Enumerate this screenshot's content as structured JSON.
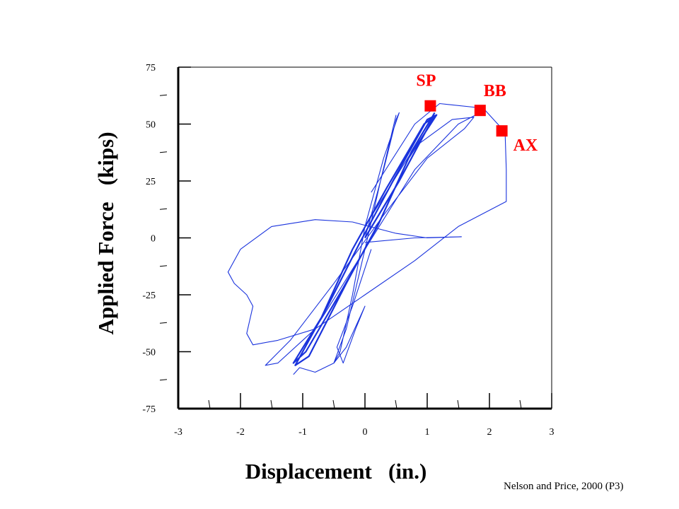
{
  "chart_data": {
    "type": "line",
    "xlabel": "Displacement   (in.)",
    "ylabel": "Applied Force   (kips)",
    "xlim": [
      -3,
      3
    ],
    "ylim": [
      -75,
      75
    ],
    "x_ticks": [
      "-3",
      "-2",
      "-1",
      "0",
      "1",
      "2",
      "3"
    ],
    "y_ticks": [
      "75",
      "50",
      "25",
      "0",
      "-25",
      "-50",
      "-75"
    ],
    "grid": false,
    "line_color": "#1a33dd",
    "marker_color": "#ff0000",
    "series": [
      {
        "values": [
          [
            0.0,
            0.0
          ],
          [
            0.55,
            25.0
          ],
          [
            1.1,
            53.0
          ],
          [
            0.95,
            50.0
          ],
          [
            0.35,
            22.0
          ],
          [
            -0.2,
            -5.0
          ],
          [
            -0.7,
            -35.0
          ],
          [
            -1.15,
            -55.0
          ],
          [
            -0.95,
            -50.0
          ],
          [
            -0.35,
            -22.0
          ],
          [
            0.2,
            5.0
          ],
          [
            0.7,
            35.0
          ],
          [
            1.15,
            54.0
          ],
          [
            1.0,
            52.0
          ],
          [
            0.45,
            25.0
          ],
          [
            -0.1,
            -3.0
          ],
          [
            -0.6,
            -30.0
          ],
          [
            -1.12,
            -56.0
          ],
          [
            -0.9,
            -52.0
          ],
          [
            -0.3,
            -20.0
          ],
          [
            0.25,
            8.0
          ],
          [
            0.75,
            38.0
          ],
          [
            1.12,
            55.0
          ]
        ]
      },
      {
        "values": [
          [
            0.0,
            0.0
          ],
          [
            0.3,
            30.0
          ],
          [
            0.5,
            52.0
          ],
          [
            0.55,
            55.0
          ],
          [
            0.3,
            35.0
          ],
          [
            0.0,
            5.0
          ],
          [
            -0.2,
            -25.0
          ],
          [
            -0.4,
            -50.0
          ],
          [
            -0.5,
            -55.0
          ],
          [
            -0.3,
            -40.0
          ],
          [
            0.0,
            -5.0
          ],
          [
            0.25,
            25.0
          ],
          [
            0.5,
            54.0
          ]
        ]
      },
      {
        "values": [
          [
            0.0,
            5.0
          ],
          [
            0.8,
            40.0
          ],
          [
            1.4,
            52.0
          ],
          [
            1.75,
            53.0
          ],
          [
            1.6,
            48.0
          ],
          [
            1.0,
            35.0
          ],
          [
            0.3,
            10.0
          ],
          [
            -0.5,
            -20.0
          ],
          [
            -1.2,
            -45.0
          ],
          [
            -1.6,
            -56.0
          ],
          [
            -1.4,
            -55.0
          ],
          [
            -0.8,
            -40.0
          ],
          [
            0.0,
            -5.0
          ],
          [
            0.8,
            30.0
          ],
          [
            1.5,
            50.0
          ],
          [
            1.85,
            55.0
          ]
        ]
      },
      {
        "values": [
          [
            0.1,
            20.0
          ],
          [
            0.8,
            50.0
          ],
          [
            1.2,
            59.0
          ],
          [
            1.9,
            57.0
          ],
          [
            2.2,
            48.0
          ],
          [
            2.25,
            47.5
          ],
          [
            2.27,
            30.0
          ],
          [
            2.27,
            16.0
          ],
          [
            1.5,
            5.0
          ],
          [
            0.8,
            -10.0
          ],
          [
            0.0,
            -25.0
          ],
          [
            -0.8,
            -40.0
          ],
          [
            -1.4,
            -45.0
          ],
          [
            -1.8,
            -47.0
          ],
          [
            -1.9,
            -42.0
          ],
          [
            -1.8,
            -30.0
          ],
          [
            -1.9,
            -25.0
          ],
          [
            -2.1,
            -20.0
          ],
          [
            -2.2,
            -15.0
          ],
          [
            -2.0,
            -5.0
          ],
          [
            -1.5,
            5.0
          ],
          [
            -0.8,
            8.0
          ],
          [
            -0.2,
            7.0
          ],
          [
            0.5,
            2.0
          ],
          [
            1.0,
            0.0
          ],
          [
            1.55,
            0.5
          ],
          [
            0.8,
            0.0
          ],
          [
            0.0,
            -2.0
          ]
        ]
      },
      {
        "values": [
          [
            -1.15,
            -60.0
          ],
          [
            -1.05,
            -57.0
          ],
          [
            -0.8,
            -59.0
          ],
          [
            -0.5,
            -55.0
          ],
          [
            -0.3,
            -48.0
          ],
          [
            0.0,
            -30.0
          ],
          [
            -0.15,
            -40.0
          ],
          [
            -0.35,
            -55.0
          ],
          [
            -0.45,
            -48.0
          ],
          [
            -0.2,
            -30.0
          ],
          [
            0.1,
            -5.0
          ]
        ]
      }
    ],
    "markers": [
      {
        "label": "SP",
        "x": 1.05,
        "y": 58.0
      },
      {
        "label": "BB",
        "x": 1.85,
        "y": 56.0
      },
      {
        "label": "AX",
        "x": 2.2,
        "y": 47.0
      }
    ],
    "annotation": "Nelson and Price, 2000 (P3)"
  }
}
